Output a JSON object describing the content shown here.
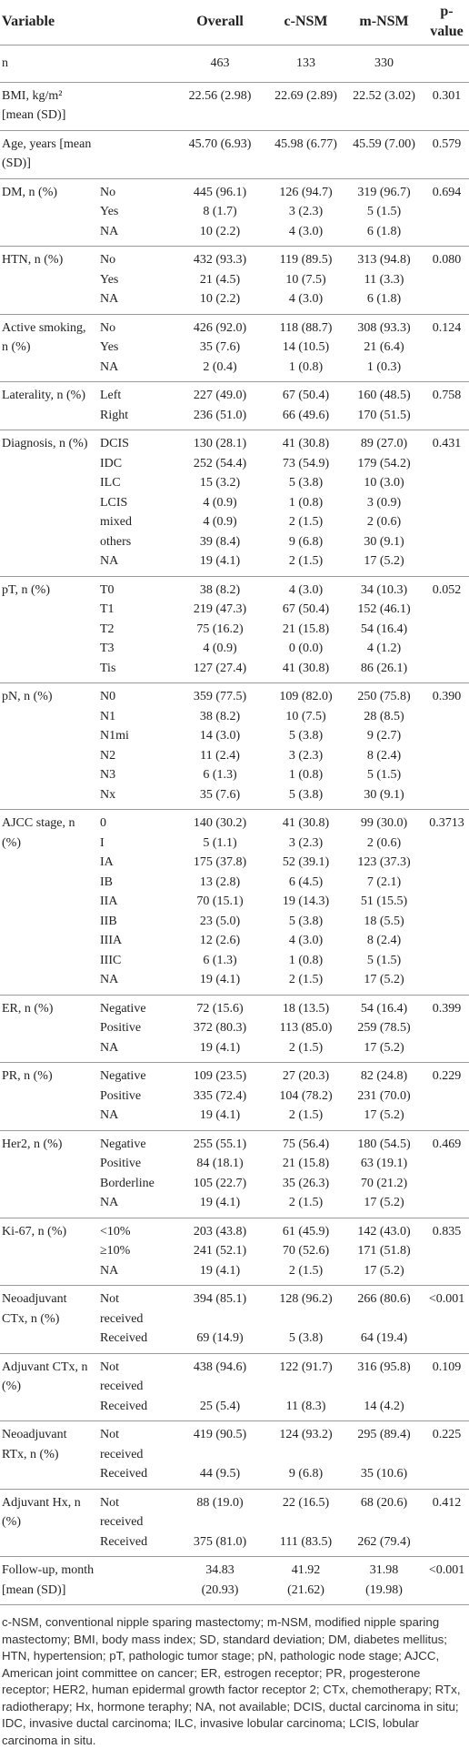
{
  "table": {
    "columns": [
      "Variable",
      "Overall",
      "c-NSM",
      "m-NSM",
      "p-value"
    ],
    "groups": [
      {
        "variable": "n",
        "rows": [
          [
            null,
            "463",
            "133",
            "330"
          ]
        ],
        "p_value": null
      },
      {
        "variable": "BMI, kg/m² [mean (SD)]",
        "rows": [
          [
            null,
            "22.56 (2.98)",
            "22.69 (2.89)",
            "22.52 (3.02)"
          ]
        ],
        "p_value": "0.301"
      },
      {
        "variable": "Age, years [mean (SD)]",
        "rows": [
          [
            null,
            "45.70 (6.93)",
            "45.98 (6.77)",
            "45.59 (7.00)"
          ]
        ],
        "p_value": "0.579"
      },
      {
        "variable": "DM, n (%)",
        "rows": [
          [
            "No",
            "445 (96.1)",
            "126 (94.7)",
            "319 (96.7)"
          ],
          [
            "Yes",
            "8 (1.7)",
            "3 (2.3)",
            "5 (1.5)"
          ],
          [
            "NA",
            "10 (2.2)",
            "4 (3.0)",
            "6 (1.8)"
          ]
        ],
        "p_value": "0.694"
      },
      {
        "variable": "HTN, n (%)",
        "rows": [
          [
            "No",
            "432 (93.3)",
            "119 (89.5)",
            "313 (94.8)"
          ],
          [
            "Yes",
            "21 (4.5)",
            "10 (7.5)",
            "11 (3.3)"
          ],
          [
            "NA",
            "10 (2.2)",
            "4 (3.0)",
            "6 (1.8)"
          ]
        ],
        "p_value": "0.080"
      },
      {
        "variable": "Active smoking, n (%)",
        "rows": [
          [
            "No",
            "426 (92.0)",
            "118 (88.7)",
            "308 (93.3)"
          ],
          [
            "Yes",
            "35 (7.6)",
            "14 (10.5)",
            "21 (6.4)"
          ],
          [
            "NA",
            "2 (0.4)",
            "1 (0.8)",
            "1 (0.3)"
          ]
        ],
        "p_value": "0.124"
      },
      {
        "variable": "Laterality, n (%)",
        "rows": [
          [
            "Left",
            "227 (49.0)",
            "67 (50.4)",
            "160 (48.5)"
          ],
          [
            "Right",
            "236 (51.0)",
            "66 (49.6)",
            "170 (51.5)"
          ]
        ],
        "p_value": "0.758"
      },
      {
        "variable": "Diagnosis, n (%)",
        "rows": [
          [
            "DCIS",
            "130 (28.1)",
            "41 (30.8)",
            "89 (27.0)"
          ],
          [
            "IDC",
            "252 (54.4)",
            "73 (54.9)",
            "179 (54.2)"
          ],
          [
            "ILC",
            "15 (3.2)",
            "5 (3.8)",
            "10 (3.0)"
          ],
          [
            "LCIS",
            "4 (0.9)",
            "1 (0.8)",
            "3 (0.9)"
          ],
          [
            "mixed",
            "4 (0.9)",
            "2 (1.5)",
            "2 (0.6)"
          ],
          [
            "others",
            "39 (8.4)",
            "9 (6.8)",
            "30 (9.1)"
          ],
          [
            "NA",
            "19 (4.1)",
            "2 (1.5)",
            "17 (5.2)"
          ]
        ],
        "p_value": "0.431"
      },
      {
        "variable": "pT, n (%)",
        "rows": [
          [
            "T0",
            "38 (8.2)",
            "4 (3.0)",
            "34 (10.3)"
          ],
          [
            "T1",
            "219 (47.3)",
            "67 (50.4)",
            "152 (46.1)"
          ],
          [
            "T2",
            "75 (16.2)",
            "21 (15.8)",
            "54 (16.4)"
          ],
          [
            "T3",
            "4 (0.9)",
            "0 (0.0)",
            "4 (1.2)"
          ],
          [
            "Tis",
            "127 (27.4)",
            "41 (30.8)",
            "86 (26.1)"
          ]
        ],
        "p_value": "0.052"
      },
      {
        "variable": "pN, n (%)",
        "rows": [
          [
            "N0",
            "359 (77.5)",
            "109 (82.0)",
            "250 (75.8)"
          ],
          [
            "N1",
            "38 (8.2)",
            "10 (7.5)",
            "28 (8.5)"
          ],
          [
            "N1mi",
            "14 (3.0)",
            "5 (3.8)",
            "9 (2.7)"
          ],
          [
            "N2",
            "11 (2.4)",
            "3 (2.3)",
            "8 (2.4)"
          ],
          [
            "N3",
            "6 (1.3)",
            "1 (0.8)",
            "5 (1.5)"
          ],
          [
            "Nx",
            "35 (7.6)",
            "5 (3.8)",
            "30 (9.1)"
          ]
        ],
        "p_value": "0.390"
      },
      {
        "variable": "AJCC stage, n (%)",
        "rows": [
          [
            "0",
            "140 (30.2)",
            "41 (30.8)",
            "99 (30.0)"
          ],
          [
            "I",
            "5 (1.1)",
            "3 (2.3)",
            "2 (0.6)"
          ],
          [
            "IA",
            "175 (37.8)",
            "52 (39.1)",
            "123 (37.3)"
          ],
          [
            "IB",
            "13 (2.8)",
            "6 (4.5)",
            "7 (2.1)"
          ],
          [
            "IIA",
            "70 (15.1)",
            "19 (14.3)",
            "51 (15.5)"
          ],
          [
            "IIB",
            "23 (5.0)",
            "5 (3.8)",
            "18 (5.5)"
          ],
          [
            "IIIA",
            "12 (2.6)",
            "4 (3.0)",
            "8 (2.4)"
          ],
          [
            "IIIC",
            "6 (1.3)",
            "1 (0.8)",
            "5 (1.5)"
          ],
          [
            "NA",
            "19 (4.1)",
            "2 (1.5)",
            "17 (5.2)"
          ]
        ],
        "p_value": "0.3713"
      },
      {
        "variable": "ER, n (%)",
        "rows": [
          [
            "Negative",
            "72 (15.6)",
            "18 (13.5)",
            "54 (16.4)"
          ],
          [
            "Positive",
            "372 (80.3)",
            "113 (85.0)",
            "259 (78.5)"
          ],
          [
            "NA",
            "19 (4.1)",
            "2 (1.5)",
            "17 (5.2)"
          ]
        ],
        "p_value": "0.399"
      },
      {
        "variable": "PR, n (%)",
        "rows": [
          [
            "Negative",
            "109 (23.5)",
            "27 (20.3)",
            "82 (24.8)"
          ],
          [
            "Positive",
            "335 (72.4)",
            "104 (78.2)",
            "231 (70.0)"
          ],
          [
            "NA",
            "19 (4.1)",
            "2 (1.5)",
            "17 (5.2)"
          ]
        ],
        "p_value": "0.229"
      },
      {
        "variable": "Her2, n (%)",
        "rows": [
          [
            "Negative",
            "255 (55.1)",
            "75 (56.4)",
            "180 (54.5)"
          ],
          [
            "Positive",
            "84 (18.1)",
            "21 (15.8)",
            "63 (19.1)"
          ],
          [
            "Borderline",
            "105 (22.7)",
            "35 (26.3)",
            "70 (21.2)"
          ],
          [
            "NA",
            "19 (4.1)",
            "2 (1.5)",
            "17 (5.2)"
          ]
        ],
        "p_value": "0.469"
      },
      {
        "variable": "Ki-67, n (%)",
        "rows": [
          [
            "<10%",
            "203 (43.8)",
            "61 (45.9)",
            "142 (43.0)"
          ],
          [
            "≥10%",
            "241 (52.1)",
            "70 (52.6)",
            "171 (51.8)"
          ],
          [
            "NA",
            "19 (4.1)",
            "2 (1.5)",
            "17 (5.2)"
          ]
        ],
        "p_value": "0.835"
      },
      {
        "variable": "Neoadjuvant CTx, n (%)",
        "rows": [
          [
            "Not received",
            "394 (85.1)",
            "128 (96.2)",
            "266 (80.6)"
          ],
          [
            "Received",
            "69 (14.9)",
            "5 (3.8)",
            "64 (19.4)"
          ]
        ],
        "p_value": "<0.001"
      },
      {
        "variable": "Adjuvant CTx, n (%)",
        "rows": [
          [
            "Not received",
            "438 (94.6)",
            "122 (91.7)",
            "316 (95.8)"
          ],
          [
            "Received",
            "25 (5.4)",
            "11 (8.3)",
            "14 (4.2)"
          ]
        ],
        "p_value": "0.109"
      },
      {
        "variable": "Neoadjuvant RTx, n (%)",
        "rows": [
          [
            "Not received",
            "419 (90.5)",
            "124 (93.2)",
            "295 (89.4)"
          ],
          [
            "Received",
            "44 (9.5)",
            "9 (6.8)",
            "35 (10.6)"
          ]
        ],
        "p_value": "0.225"
      },
      {
        "variable": "Adjuvant Hx, n (%)",
        "rows": [
          [
            "Not received",
            "88 (19.0)",
            "22 (16.5)",
            "68 (20.6)"
          ],
          [
            "Received",
            "375 (81.0)",
            "111 (83.5)",
            "262 (79.4)"
          ]
        ],
        "p_value": "0.412"
      },
      {
        "variable": "Follow-up, month [mean (SD)]",
        "rows": [
          [
            null,
            "34.83 (20.93)",
            "41.92 (21.62)",
            "31.98 (19.98)"
          ]
        ],
        "p_value": "<0.001"
      }
    ]
  },
  "footnote": "c-NSM, conventional nipple sparing mastectomy; m-NSM, modified nipple sparing mastectomy; BMI, body mass index; SD, standard deviation; DM, diabetes mellitus; HTN, hypertension; pT, pathologic tumor stage; pN, pathologic node stage; AJCC, American joint committee on cancer; ER, estrogen receptor; PR, progesterone receptor; HER2, human epidermal growth factor receptor 2; CTx, chemotherapy; RTx, radiotherapy; Hx, hormone teraphy; NA, not available; DCIS, ductal carcinoma in situ; IDC, invasive ductal carcinoma; ILC, invasive lobular carcinoma; LCIS, lobular carcinoma in situ."
}
